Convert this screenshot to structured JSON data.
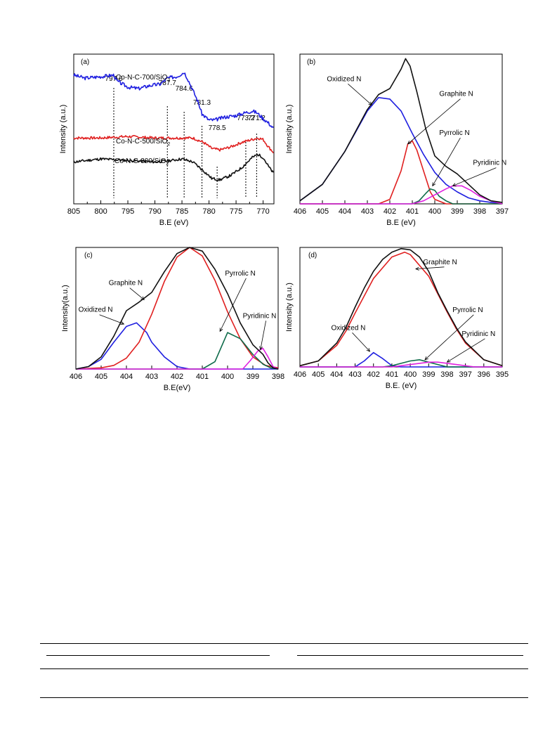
{
  "chart_data": [
    {
      "id": "a",
      "type": "line",
      "panel_label": "(a)",
      "xlabel": "B.E (eV)",
      "ylabel": "Intensity (a.u.)",
      "xlim": [
        805,
        768
      ],
      "ylim": [
        0,
        1
      ],
      "xticks": [
        805,
        800,
        795,
        790,
        785,
        780,
        775,
        770
      ],
      "peak_lines": [
        {
          "x": 797.6,
          "label": "797.6"
        },
        {
          "x": 787.7,
          "label": "787.7"
        },
        {
          "x": 784.6,
          "label": "784.6"
        },
        {
          "x": 781.3,
          "label": "781.3"
        },
        {
          "x": 778.5,
          "label": "778.5"
        },
        {
          "x": 773.2,
          "label": "773.2"
        },
        {
          "x": 771.2,
          "label": "771.2"
        }
      ],
      "series": [
        {
          "name": "Co-N-C-700/SiO",
          "name_sub": "2",
          "color": "#1f1fe0",
          "noise": 0.012,
          "seed": 3,
          "x": [
            805,
            803,
            800,
            797.6,
            797,
            795,
            793,
            791,
            789,
            787.7,
            786,
            785,
            784.6,
            784,
            783,
            782,
            781.3,
            780,
            779,
            778,
            777,
            775,
            773.2,
            772,
            771.2,
            770,
            769,
            768
          ],
          "y": [
            0.86,
            0.84,
            0.85,
            0.86,
            0.82,
            0.78,
            0.77,
            0.79,
            0.8,
            0.84,
            0.85,
            0.87,
            0.88,
            0.84,
            0.76,
            0.68,
            0.6,
            0.56,
            0.56,
            0.57,
            0.58,
            0.59,
            0.61,
            0.62,
            0.61,
            0.57,
            0.54,
            0.5
          ]
        },
        {
          "name": "Co-N-C-500/SiO",
          "name_sub": "2",
          "color": "#e02020",
          "noise": 0.009,
          "seed": 7,
          "x": [
            805,
            800,
            795,
            790,
            787,
            785,
            783,
            781,
            779.5,
            778,
            776,
            774,
            772,
            771,
            770,
            769,
            768
          ],
          "y": [
            0.44,
            0.44,
            0.45,
            0.44,
            0.44,
            0.44,
            0.44,
            0.41,
            0.37,
            0.36,
            0.38,
            0.41,
            0.43,
            0.44,
            0.43,
            0.38,
            0.34
          ]
        },
        {
          "name": "Co-N-C-300/SiO",
          "name_sub": "2",
          "color": "#111111",
          "noise": 0.009,
          "seed": 11,
          "x": [
            805,
            800,
            795,
            790,
            787,
            785,
            783,
            781,
            779.5,
            778,
            776,
            774,
            772,
            771,
            770,
            769,
            768
          ],
          "y": [
            0.28,
            0.3,
            0.29,
            0.28,
            0.29,
            0.3,
            0.28,
            0.22,
            0.17,
            0.16,
            0.19,
            0.24,
            0.31,
            0.33,
            0.31,
            0.25,
            0.2
          ]
        }
      ]
    },
    {
      "id": "b",
      "type": "line",
      "panel_label": "(b)",
      "xlabel": "B.E (eV)",
      "ylabel": "Intensity (a.u.)",
      "xlim": [
        406,
        397
      ],
      "ylim": [
        0,
        1
      ],
      "xticks": [
        406,
        405,
        404,
        403,
        402,
        401,
        400,
        399,
        398,
        397
      ],
      "series": [
        {
          "name": "Oxidized N",
          "color": "#1f1fe0",
          "x": [
            406,
            405,
            404,
            403,
            402.5,
            402,
            401.5,
            401,
            400.5,
            400,
            399.5,
            399,
            398.5,
            398,
            397.5,
            397
          ],
          "y": [
            0.02,
            0.13,
            0.35,
            0.62,
            0.71,
            0.7,
            0.62,
            0.47,
            0.33,
            0.21,
            0.13,
            0.08,
            0.04,
            0.02,
            0.01,
            0.0
          ]
        },
        {
          "name": "Graphite N",
          "color": "#e02020",
          "x": [
            406,
            402.5,
            402,
            401.5,
            401.2,
            401,
            400.8,
            400.5,
            400.2,
            400,
            399.5,
            399,
            397
          ],
          "y": [
            0,
            0,
            0.03,
            0.22,
            0.4,
            0.42,
            0.36,
            0.22,
            0.08,
            0.03,
            0.0,
            0,
            0
          ]
        },
        {
          "name": "Pyrrolic N",
          "color": "#0e6b4a",
          "x": [
            406,
            401,
            400.7,
            400.4,
            400.2,
            400,
            399.8,
            399.5,
            399.2,
            397
          ],
          "y": [
            0,
            0,
            0.02,
            0.07,
            0.1,
            0.09,
            0.05,
            0.02,
            0,
            0
          ]
        },
        {
          "name": "Pyridinic N",
          "color": "#e020e0",
          "x": [
            406,
            401,
            400.5,
            400,
            399.5,
            399.2,
            398.8,
            398.4,
            398,
            397.5,
            397
          ],
          "y": [
            0,
            0,
            0.02,
            0.06,
            0.1,
            0.12,
            0.12,
            0.09,
            0.05,
            0.02,
            0.0
          ]
        },
        {
          "name": "",
          "color": "#111111",
          "x": [
            406,
            405,
            404,
            403,
            402.5,
            402,
            401.5,
            401.3,
            401.1,
            400.8,
            400.4,
            400,
            399.5,
            399,
            398.5,
            398,
            397.5,
            397
          ],
          "y": [
            0.02,
            0.13,
            0.35,
            0.63,
            0.73,
            0.77,
            0.9,
            0.97,
            0.92,
            0.75,
            0.5,
            0.32,
            0.25,
            0.2,
            0.13,
            0.06,
            0.02,
            0.01
          ]
        }
      ],
      "annotations": [
        {
          "text": "Oxidized N",
          "tx": 404.8,
          "ty": 0.82,
          "ax": 402.8,
          "ay": 0.66
        },
        {
          "text": "Graphite N",
          "tx": 399.8,
          "ty": 0.72,
          "ax": 401.2,
          "ay": 0.4
        },
        {
          "text": "Pyrrolic N",
          "tx": 399.8,
          "ty": 0.46,
          "ax": 400.1,
          "ay": 0.12
        },
        {
          "text": "Pyridinic N",
          "tx": 398.3,
          "ty": 0.26,
          "ax": 399.2,
          "ay": 0.12
        }
      ]
    },
    {
      "id": "c",
      "type": "line",
      "panel_label": "(c)",
      "xlabel": "B.E(eV)",
      "ylabel": "Intensity(a.u.)",
      "xlim": [
        406,
        398
      ],
      "ylim": [
        0,
        1
      ],
      "xticks": [
        406,
        405,
        404,
        403,
        402,
        401,
        400,
        399,
        398
      ],
      "series": [
        {
          "name": "Oxidized N",
          "color": "#1f1fe0",
          "x": [
            406,
            405.5,
            405,
            404.5,
            404,
            403.6,
            403.2,
            403,
            402.5,
            402,
            401.5,
            398
          ],
          "y": [
            0,
            0.02,
            0.08,
            0.22,
            0.35,
            0.38,
            0.3,
            0.22,
            0.1,
            0.02,
            0,
            0
          ]
        },
        {
          "name": "Graphite N",
          "color": "#e02020",
          "x": [
            406,
            405,
            404.5,
            404,
            403.5,
            403,
            402.5,
            402,
            401.5,
            401,
            400.5,
            400,
            399.5,
            399,
            398.5,
            398
          ],
          "y": [
            0,
            0.01,
            0.03,
            0.09,
            0.22,
            0.45,
            0.72,
            0.92,
            1.0,
            0.93,
            0.73,
            0.47,
            0.25,
            0.1,
            0.03,
            0.01
          ]
        },
        {
          "name": "Pyrrolic N",
          "color": "#0e6b4a",
          "x": [
            406,
            401,
            400.5,
            400,
            399.5,
            399,
            398.6,
            398.3,
            398
          ],
          "y": [
            0,
            0,
            0.06,
            0.3,
            0.25,
            0.12,
            0.04,
            0.01,
            0
          ]
        },
        {
          "name": "Pyridinic N",
          "color": "#e020e0",
          "x": [
            406,
            399.4,
            399.1,
            398.8,
            398.6,
            398.4,
            398.2,
            398
          ],
          "y": [
            0,
            0,
            0.07,
            0.15,
            0.17,
            0.1,
            0.02,
            0
          ]
        },
        {
          "name": "",
          "color": "#111111",
          "x": [
            406,
            405.5,
            405,
            404.5,
            404,
            403.5,
            403,
            402.5,
            402,
            401.5,
            401,
            400.5,
            400,
            399.5,
            399,
            398.8,
            398.6,
            398.4,
            398.2,
            398
          ],
          "y": [
            0,
            0.02,
            0.1,
            0.27,
            0.48,
            0.55,
            0.63,
            0.8,
            0.95,
            1.0,
            0.97,
            0.82,
            0.62,
            0.38,
            0.2,
            0.16,
            0.12,
            0.05,
            0.01,
            0
          ]
        }
      ],
      "annotations": [
        {
          "text": "Graphite N",
          "tx": 404.7,
          "ty": 0.69,
          "ax": 403.3,
          "ay": 0.57
        },
        {
          "text": "Oxidized N",
          "tx": 405.9,
          "ty": 0.47,
          "ax": 404.1,
          "ay": 0.37
        },
        {
          "text": "Pyrrolic N",
          "tx": 400.1,
          "ty": 0.77,
          "ax": 400.3,
          "ay": 0.31
        },
        {
          "text": "Pyridinic N",
          "tx": 399.4,
          "ty": 0.42,
          "ax": 398.7,
          "ay": 0.16
        }
      ]
    },
    {
      "id": "d",
      "type": "line",
      "panel_label": "(d)",
      "xlabel": "B.E. (eV)",
      "ylabel": "Intensity (a.u.)",
      "xlim": [
        406,
        395
      ],
      "ylim": [
        0,
        1
      ],
      "xticks": [
        406,
        405,
        404,
        403,
        402,
        401,
        400,
        399,
        398,
        397,
        396,
        395
      ],
      "series": [
        {
          "name": "Oxidized N",
          "color": "#1f1fe0",
          "x": [
            406,
            403,
            402.5,
            402,
            401.5,
            401,
            400.5,
            395
          ],
          "y": [
            0,
            0,
            0.05,
            0.12,
            0.07,
            0.01,
            0,
            0
          ]
        },
        {
          "name": "Graphite N",
          "color": "#e02020",
          "x": [
            406,
            405,
            404,
            403.5,
            403,
            402,
            401,
            400.3,
            400,
            399,
            398,
            397.5,
            397,
            396,
            395
          ],
          "y": [
            0.01,
            0.05,
            0.18,
            0.3,
            0.45,
            0.74,
            0.92,
            0.96,
            0.94,
            0.76,
            0.46,
            0.32,
            0.2,
            0.06,
            0.01
          ]
        },
        {
          "name": "Pyrrolic N",
          "color": "#0e6b4a",
          "x": [
            406,
            401.5,
            401,
            400.5,
            400,
            399.5,
            399,
            398.5,
            398,
            395
          ],
          "y": [
            0,
            0,
            0.01,
            0.03,
            0.05,
            0.06,
            0.04,
            0.02,
            0,
            0
          ]
        },
        {
          "name": "Pyridinic N",
          "color": "#e020e0",
          "x": [
            406,
            401,
            400.5,
            400,
            399.5,
            399,
            398.5,
            398,
            397.5,
            397,
            396.5,
            395
          ],
          "y": [
            0,
            0,
            0.01,
            0.02,
            0.03,
            0.04,
            0.04,
            0.03,
            0.02,
            0.01,
            0,
            0
          ]
        },
        {
          "name": "",
          "color": "#111111",
          "x": [
            406,
            405,
            404,
            403.5,
            403,
            402.5,
            402,
            401.5,
            401,
            400.5,
            400,
            399.5,
            399,
            398.5,
            398,
            397.5,
            397,
            396,
            395
          ],
          "y": [
            0.01,
            0.05,
            0.2,
            0.33,
            0.5,
            0.66,
            0.8,
            0.9,
            0.96,
            0.99,
            0.98,
            0.92,
            0.8,
            0.62,
            0.47,
            0.33,
            0.21,
            0.06,
            0.01
          ]
        }
      ],
      "annotations": [
        {
          "text": "Graphite N",
          "tx": 399.3,
          "ty": 0.86,
          "ax": 399.7,
          "ay": 0.82
        },
        {
          "text": "Oxidized N",
          "tx": 404.3,
          "ty": 0.31,
          "ax": 402.2,
          "ay": 0.13
        },
        {
          "text": "Pyrrolic N",
          "tx": 397.7,
          "ty": 0.46,
          "ax": 399.2,
          "ay": 0.06
        },
        {
          "text": "Pyridinic N",
          "tx": 397.2,
          "ty": 0.26,
          "ax": 398.0,
          "ay": 0.04
        }
      ]
    }
  ]
}
